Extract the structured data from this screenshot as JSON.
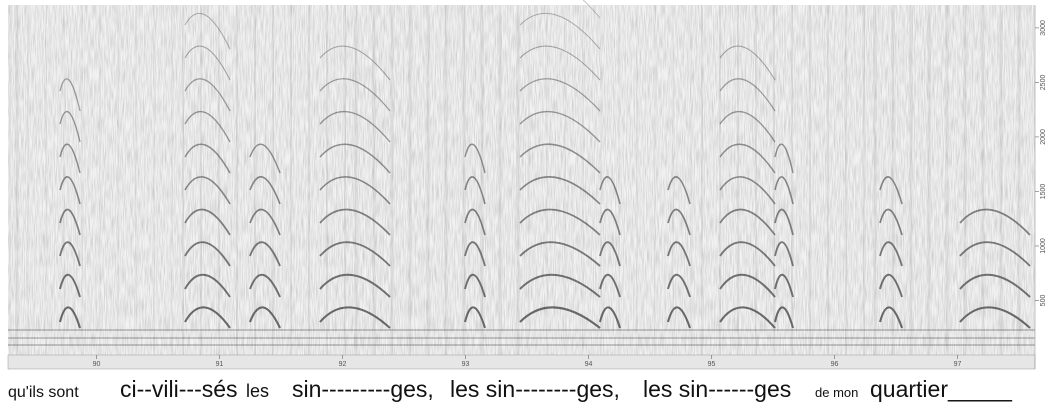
{
  "spectrogram": {
    "xlim": [
      89.28,
      97.63
    ],
    "xticks": [
      90,
      91,
      92,
      93,
      94,
      95,
      96,
      97
    ],
    "ylim": [
      0,
      3210
    ],
    "yticks": [
      500,
      1000,
      1500,
      2000,
      2500,
      3000
    ]
  },
  "lyrics": [
    "qu'ils sont",
    "ci--vili---sés",
    "les",
    "sin---------ges,",
    "les sin--------ges,",
    "les sin------ges",
    "de mon",
    "quartier_____"
  ]
}
